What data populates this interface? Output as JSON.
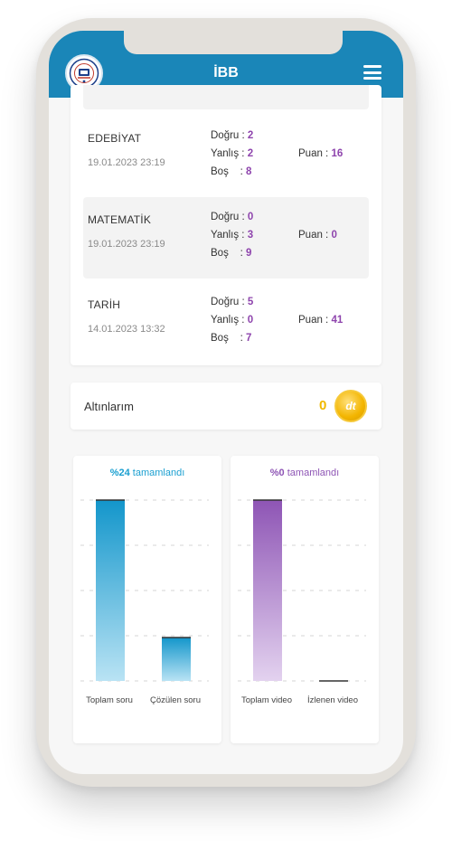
{
  "header": {
    "title": "İBB",
    "logo_icon": "ibb-ders-atolyeleri-logo",
    "menu_icon": "hamburger-menu-icon"
  },
  "results": [
    {
      "subject": "EDEBİYAT",
      "date": "19.01.2023 23:19",
      "dogru_label": "Doğru :",
      "dogru": "2",
      "yanlis_label": "Yanlış :",
      "yanlis": "2",
      "bos_label": "Boş",
      "bos_sep": ":",
      "bos": "8",
      "puan_label": "Puan :",
      "puan": "16"
    },
    {
      "subject": "MATEMATİK",
      "date": "19.01.2023 23:19",
      "dogru_label": "Doğru :",
      "dogru": "0",
      "yanlis_label": "Yanlış :",
      "yanlis": "3",
      "bos_label": "Boş",
      "bos_sep": ":",
      "bos": "9",
      "puan_label": "Puan :",
      "puan": "0"
    },
    {
      "subject": "TARİH",
      "date": "14.01.2023 13:32",
      "dogru_label": "Doğru :",
      "dogru": "5",
      "yanlis_label": "Yanlış :",
      "yanlis": "0",
      "bos_label": "Boş",
      "bos_sep": ":",
      "bos": "7",
      "puan_label": "Puan :",
      "puan": "41"
    }
  ],
  "gold": {
    "label": "Altınlarım",
    "value": "0",
    "coin_icon": "gold-coin-icon",
    "coin_text": "dt"
  },
  "colors": {
    "header": "#1a86b8",
    "accent_purple": "#8e44ad",
    "gold": "#f0b800",
    "bar_blue": "#1a9fd0",
    "bar_purple": "#8e55b5"
  },
  "chart_data": [
    {
      "type": "bar",
      "title_pct": "%24",
      "title_text": " tamamlandı",
      "categories": [
        "Toplam soru",
        "Çözülen soru"
      ],
      "values": [
        100,
        24
      ],
      "ylim": [
        0,
        100
      ],
      "grid": true,
      "color": "#1a9fd0"
    },
    {
      "type": "bar",
      "title_pct": "%0",
      "title_text": " tamamlandı",
      "categories": [
        "Toplam video",
        "İzlenen video"
      ],
      "values": [
        100,
        0
      ],
      "ylim": [
        0,
        100
      ],
      "grid": true,
      "color": "#8e55b5"
    }
  ]
}
